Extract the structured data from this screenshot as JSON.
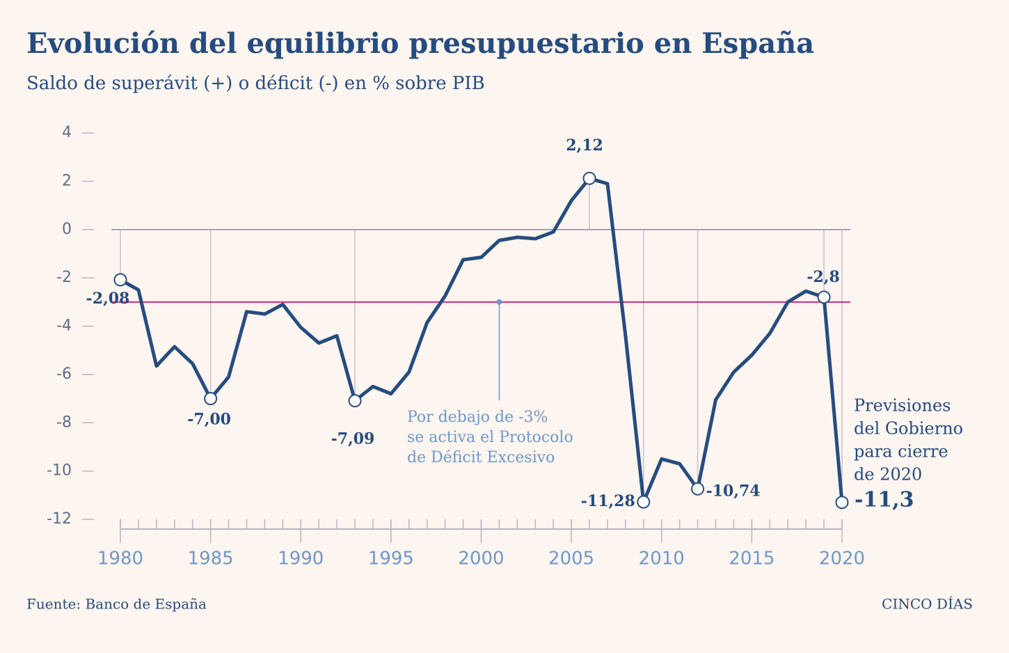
{
  "chart_data": {
    "type": "line",
    "title": "Evolución del equilibrio presupuestario en España",
    "subtitle": "Saldo de superávit (+) o déficit (-) en % sobre PIB",
    "x": [
      1980,
      1981,
      1982,
      1983,
      1984,
      1985,
      1986,
      1987,
      1988,
      1989,
      1990,
      1991,
      1992,
      1993,
      1994,
      1995,
      1996,
      1997,
      1998,
      1999,
      2000,
      2001,
      2002,
      2003,
      2004,
      2005,
      2006,
      2007,
      2008,
      2009,
      2010,
      2011,
      2012,
      2013,
      2014,
      2015,
      2016,
      2017,
      2018,
      2019,
      2020
    ],
    "values": [
      -2.08,
      -2.5,
      -5.65,
      -4.85,
      -5.55,
      -7.0,
      -6.1,
      -3.4,
      -3.5,
      -3.1,
      -4.05,
      -4.7,
      -4.4,
      -7.09,
      -6.5,
      -6.8,
      -5.9,
      -3.85,
      -2.75,
      -1.25,
      -1.15,
      -0.45,
      -0.32,
      -0.38,
      -0.1,
      1.2,
      2.12,
      1.9,
      -4.4,
      -11.28,
      -9.5,
      -9.7,
      -10.74,
      -7.05,
      -5.9,
      -5.2,
      -4.3,
      -3.0,
      -2.55,
      -2.8,
      -11.3
    ],
    "value_labels": [
      "-2,08",
      null,
      null,
      null,
      null,
      "-7,00",
      null,
      null,
      null,
      null,
      null,
      null,
      null,
      "-7,09",
      null,
      null,
      null,
      null,
      null,
      null,
      null,
      null,
      null,
      null,
      null,
      null,
      "2,12",
      null,
      null,
      "-11,28",
      null,
      null,
      "-10,74",
      null,
      null,
      null,
      null,
      null,
      null,
      "-2,8",
      "-11,3"
    ],
    "color": "#264c7f",
    "threshold": {
      "value": -3,
      "color": "#d4267f",
      "x": 2001,
      "label": [
        "Por debajo de -3%",
        "se activa el Protocolo",
        "de Déficit Excesivo"
      ]
    },
    "note": [
      "Previsiones",
      "del Gobierno",
      "para cierre",
      "de 2020"
    ],
    "xlim": [
      1980,
      2020
    ],
    "xticks": [
      1980,
      1985,
      1990,
      1995,
      2000,
      2005,
      2010,
      2015,
      2020
    ],
    "ylim": [
      -12,
      4
    ],
    "yticks": [
      4,
      2,
      0,
      -2,
      -4,
      -6,
      -8,
      -10,
      -12
    ],
    "source": "Fuente: Banco de España",
    "brand": "CINCO DÍAS"
  }
}
